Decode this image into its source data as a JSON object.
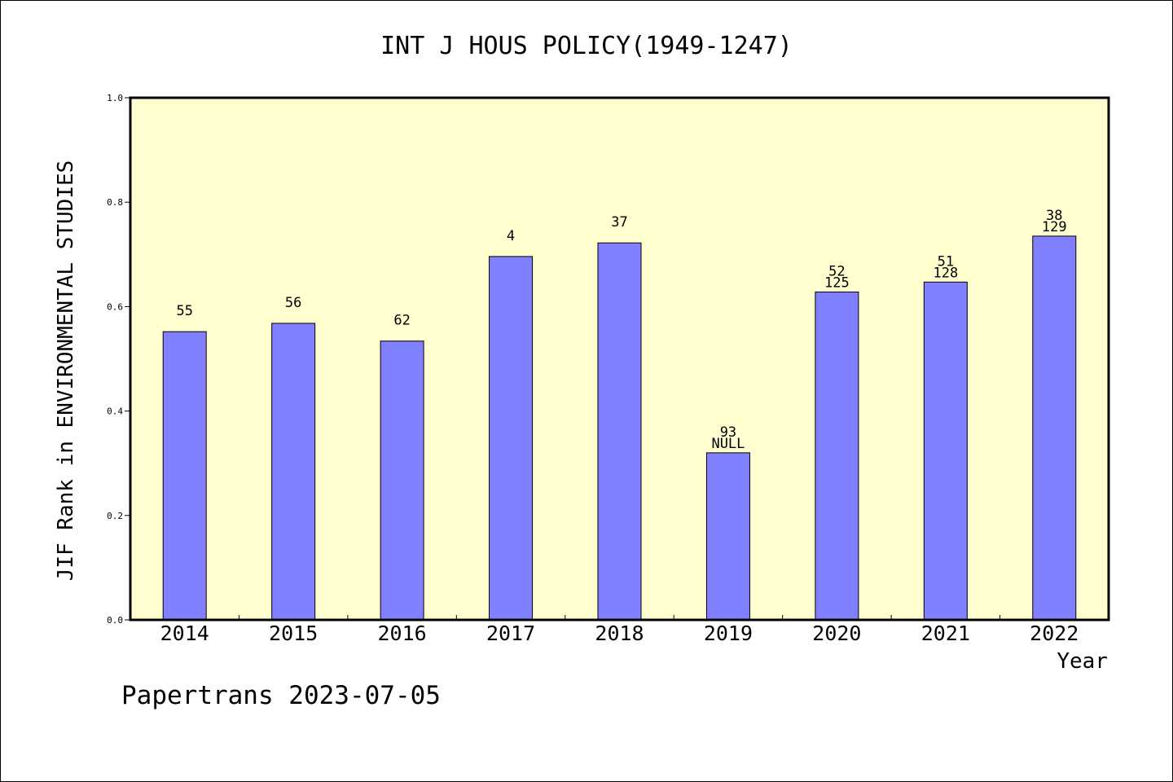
{
  "chart_data": {
    "type": "bar",
    "title": "INT J HOUS POLICY(1949-1247)",
    "xlabel": "Year",
    "ylabel": "JIF Rank in ENVIRONMENTAL STUDIES",
    "ylim": [
      0.0,
      1.0
    ],
    "yticks": [
      "0.0",
      "0.2",
      "0.4",
      "0.6",
      "0.8",
      "1.0"
    ],
    "categories": [
      "2014",
      "2015",
      "2016",
      "2017",
      "2018",
      "2019",
      "2020",
      "2021",
      "2022"
    ],
    "values": [
      0.552,
      0.568,
      0.534,
      0.696,
      0.722,
      0.32,
      0.628,
      0.647,
      0.735
    ],
    "labels_top": [
      "55",
      "56",
      "62",
      "4",
      "37",
      "93",
      "52",
      "51",
      "38"
    ],
    "labels_bottom": [
      "",
      "",
      "",
      "",
      "",
      "NULL",
      "125",
      "128",
      "129"
    ],
    "grid": false,
    "plot_background": "#ffffd0",
    "bar_color": "#8080ff"
  },
  "footer": "Papertrans 2023-07-05"
}
